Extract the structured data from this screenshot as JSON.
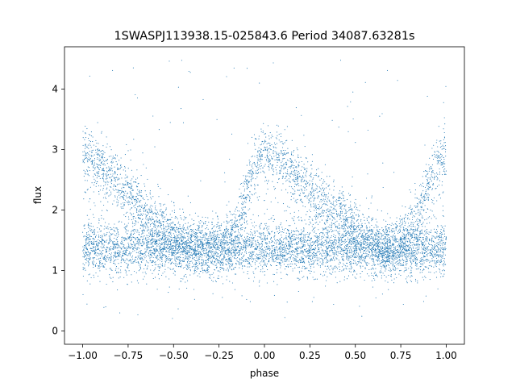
{
  "chart_data": {
    "type": "scatter",
    "title": "1SWASPJ113938.15-025843.6 Period 34087.63281s",
    "xlabel": "phase",
    "ylabel": "flux",
    "xlim": [
      -1.1,
      1.1
    ],
    "ylim": [
      -0.22,
      4.7
    ],
    "xticks": [
      -1.0,
      -0.75,
      -0.5,
      -0.25,
      0.0,
      0.25,
      0.5,
      0.75,
      1.0
    ],
    "xtick_labels": [
      "−1.00",
      "−0.75",
      "−0.50",
      "−0.25",
      "0.00",
      "0.25",
      "0.50",
      "0.75",
      "1.00"
    ],
    "yticks": [
      0,
      1,
      2,
      3,
      4
    ],
    "ytick_labels": [
      "0",
      "1",
      "2",
      "3",
      "4"
    ],
    "grid": false,
    "color": "#1f77b4",
    "series": [
      {
        "description_points": "dense folded light curve; baseline flux ≈1.35 across all phases",
        "x": [
          -1.0,
          -0.95,
          -0.9,
          -0.85,
          -0.8,
          -0.75,
          -0.7,
          -0.65,
          -0.6,
          -0.55,
          -0.5,
          -0.45,
          -0.4,
          -0.35,
          -0.3,
          -0.25,
          -0.2,
          -0.15,
          -0.1,
          -0.05,
          0.0,
          0.05,
          0.1,
          0.15,
          0.2,
          0.25,
          0.3,
          0.35,
          0.4,
          0.45,
          0.5,
          0.55,
          0.6,
          0.65,
          0.7,
          0.75,
          0.8,
          0.85,
          0.9,
          0.95,
          1.0
        ],
        "y_upper_branch": [
          2.95,
          2.85,
          2.75,
          2.6,
          2.45,
          2.3,
          2.1,
          1.95,
          1.85,
          1.7,
          1.6,
          1.5,
          1.45,
          1.4,
          1.35,
          1.4,
          1.5,
          1.7,
          2.3,
          2.8,
          2.95,
          2.9,
          2.8,
          2.65,
          2.5,
          2.35,
          2.2,
          2.05,
          1.95,
          1.85,
          1.7,
          1.55,
          1.45,
          1.35,
          1.4,
          1.5,
          1.7,
          2.0,
          2.4,
          2.8,
          3.0
        ],
        "y_baseline": [
          1.35,
          1.35,
          1.35,
          1.35,
          1.35,
          1.35,
          1.35,
          1.35,
          1.35,
          1.35,
          1.35,
          1.35,
          1.35,
          1.35,
          1.35,
          1.35,
          1.35,
          1.35,
          1.35,
          1.35,
          1.35,
          1.35,
          1.35,
          1.35,
          1.35,
          1.35,
          1.35,
          1.35,
          1.35,
          1.35,
          1.35,
          1.35,
          1.35,
          1.35,
          1.35,
          1.35,
          1.35,
          1.35,
          1.35,
          1.35,
          1.35
        ]
      }
    ]
  }
}
